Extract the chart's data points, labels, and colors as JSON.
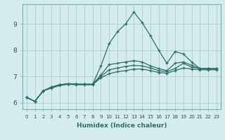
{
  "xlabel": "Humidex (Indice chaleur)",
  "ylabel": "",
  "bg_color": "#d4ecee",
  "grid_color": "#b0d0d4",
  "line_color": "#2e6e68",
  "xlim": [
    -0.5,
    23.5
  ],
  "ylim": [
    5.75,
    9.75
  ],
  "xticks": [
    0,
    1,
    2,
    3,
    4,
    5,
    6,
    7,
    8,
    9,
    10,
    11,
    12,
    13,
    14,
    15,
    16,
    17,
    18,
    19,
    20,
    21,
    22,
    23
  ],
  "yticks": [
    6,
    7,
    8,
    9
  ],
  "lines": [
    {
      "x": [
        0,
        1,
        2,
        3,
        4,
        5,
        6,
        7,
        8,
        9,
        10,
        11,
        12,
        13,
        14,
        15,
        16,
        17,
        18,
        19,
        20,
        21,
        22,
        23
      ],
      "y": [
        6.2,
        6.05,
        6.45,
        6.6,
        6.68,
        6.72,
        6.7,
        6.7,
        6.7,
        7.4,
        8.25,
        8.7,
        9.0,
        9.45,
        9.05,
        8.55,
        8.0,
        7.5,
        7.95,
        7.85,
        7.55,
        7.3,
        7.3,
        7.3
      ]
    },
    {
      "x": [
        0,
        1,
        2,
        3,
        4,
        5,
        6,
        7,
        8,
        9,
        10,
        11,
        12,
        13,
        14,
        15,
        16,
        17,
        18,
        19,
        20,
        21,
        22,
        23
      ],
      "y": [
        6.2,
        6.05,
        6.45,
        6.58,
        6.68,
        6.72,
        6.7,
        6.7,
        6.7,
        7.05,
        7.45,
        7.5,
        7.55,
        7.6,
        7.55,
        7.4,
        7.3,
        7.22,
        7.5,
        7.55,
        7.42,
        7.3,
        7.3,
        7.3
      ]
    },
    {
      "x": [
        0,
        1,
        2,
        3,
        4,
        5,
        6,
        7,
        8,
        9,
        10,
        11,
        12,
        13,
        14,
        15,
        16,
        17,
        18,
        19,
        20,
        21,
        22,
        23
      ],
      "y": [
        6.2,
        6.05,
        6.45,
        6.58,
        6.68,
        6.72,
        6.7,
        6.7,
        6.7,
        7.0,
        7.25,
        7.32,
        7.38,
        7.42,
        7.4,
        7.32,
        7.22,
        7.18,
        7.3,
        7.5,
        7.35,
        7.3,
        7.3,
        7.3
      ]
    },
    {
      "x": [
        0,
        1,
        2,
        3,
        4,
        5,
        6,
        7,
        8,
        9,
        10,
        11,
        12,
        13,
        14,
        15,
        16,
        17,
        18,
        19,
        20,
        21,
        22,
        23
      ],
      "y": [
        6.2,
        6.05,
        6.45,
        6.55,
        6.65,
        6.7,
        6.68,
        6.68,
        6.68,
        6.95,
        7.1,
        7.18,
        7.22,
        7.28,
        7.28,
        7.22,
        7.15,
        7.12,
        7.22,
        7.32,
        7.28,
        7.25,
        7.25,
        7.25
      ]
    }
  ]
}
